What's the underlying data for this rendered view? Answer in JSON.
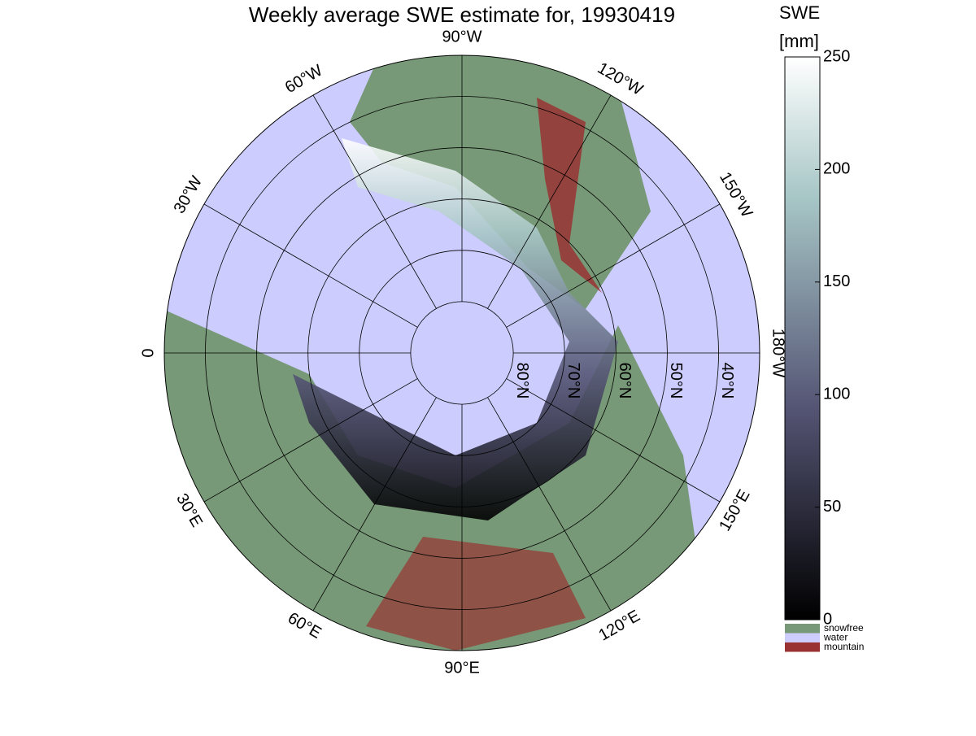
{
  "chart_data": {
    "type": "polar-map",
    "title": "Weekly average SWE estimate for, 19930419",
    "rlim": [
      32,
      90
    ],
    "latitudes": [
      {
        "value": 80,
        "label": "80°N"
      },
      {
        "value": 70,
        "label": "70°N"
      },
      {
        "value": 60,
        "label": "60°N"
      },
      {
        "value": 50,
        "label": "50°N"
      },
      {
        "value": 40,
        "label": "40°N"
      }
    ],
    "longitudes": [
      {
        "value": -90,
        "label": "90°W"
      },
      {
        "value": -120,
        "label": "120°W"
      },
      {
        "value": -150,
        "label": "150°W"
      },
      {
        "value": 180,
        "label": "180°W"
      },
      {
        "value": 150,
        "label": "150°E"
      },
      {
        "value": 120,
        "label": "120°E"
      },
      {
        "value": 90,
        "label": "90°E"
      },
      {
        "value": 60,
        "label": "60°E"
      },
      {
        "value": 30,
        "label": "30°E"
      },
      {
        "value": 0,
        "label": "0"
      },
      {
        "value": -30,
        "label": "30°W"
      },
      {
        "value": -60,
        "label": "60°W"
      }
    ],
    "colorbar": {
      "title": [
        "SWE",
        "[mm]"
      ],
      "ylim": [
        0,
        250
      ],
      "yticks": [
        0,
        50,
        100,
        150,
        200,
        250
      ]
    },
    "legend": [
      {
        "name": "snowfree",
        "color": "#779977"
      },
      {
        "name": "water",
        "color": "#ccccff"
      },
      {
        "name": "mountain",
        "color": "#993333"
      }
    ]
  }
}
